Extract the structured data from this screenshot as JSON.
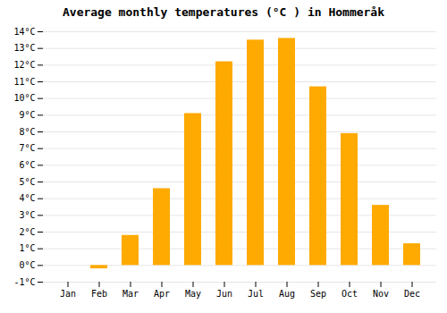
{
  "chart_data": {
    "type": "bar",
    "title": "Average monthly temperatures (°C ) in Hommeråk",
    "categories": [
      "Jan",
      "Feb",
      "Mar",
      "Apr",
      "May",
      "Jun",
      "Jul",
      "Aug",
      "Sep",
      "Oct",
      "Nov",
      "Dec"
    ],
    "values": [
      0.0,
      -0.2,
      1.8,
      4.6,
      9.1,
      12.2,
      13.5,
      13.6,
      10.7,
      7.9,
      3.6,
      1.3
    ],
    "color": "#FFAA00",
    "ylim": [
      -1,
      14
    ],
    "yticks": [
      {
        "value": -1,
        "label": "-1°C"
      },
      {
        "value": 0,
        "label": "0°C"
      },
      {
        "value": 1,
        "label": "1°C"
      },
      {
        "value": 2,
        "label": "2°C"
      },
      {
        "value": 3,
        "label": "3°C"
      },
      {
        "value": 4,
        "label": "4°C"
      },
      {
        "value": 5,
        "label": "5°C"
      },
      {
        "value": 6,
        "label": "6°C"
      },
      {
        "value": 7,
        "label": "7°C"
      },
      {
        "value": 8,
        "label": "8°C"
      },
      {
        "value": 9,
        "label": "9°C"
      },
      {
        "value": 10,
        "label": "10°C"
      },
      {
        "value": 11,
        "label": "11°C"
      },
      {
        "value": 12,
        "label": "12°C"
      },
      {
        "value": 13,
        "label": "13°C"
      },
      {
        "value": 14,
        "label": "14°C"
      }
    ],
    "grid": true
  }
}
